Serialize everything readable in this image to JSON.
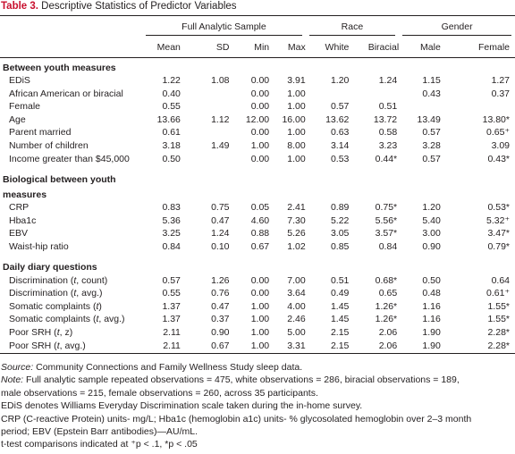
{
  "caption": {
    "label": "Table 3.",
    "text": "Descriptive Statistics of Predictor Variables"
  },
  "groups": {
    "full": "Full Analytic Sample",
    "race": "Race",
    "gender": "Gender"
  },
  "columns": [
    "Mean",
    "SD",
    "Min",
    "Max",
    "White",
    "Biracial",
    "Male",
    "Female"
  ],
  "sections": [
    {
      "title": "Between youth measures",
      "rows": [
        {
          "label": "EDiS",
          "vals": [
            "1.22",
            "1.08",
            "0.00",
            "3.91",
            "1.20",
            "1.24",
            "1.15",
            "1.27"
          ]
        },
        {
          "label": "African American or biracial",
          "vals": [
            "0.40",
            "",
            "0.00",
            "1.00",
            "",
            "",
            "0.43",
            "0.37"
          ]
        },
        {
          "label": "Female",
          "vals": [
            "0.55",
            "",
            "0.00",
            "1.00",
            "0.57",
            "0.51",
            "",
            ""
          ]
        },
        {
          "label": "Age",
          "vals": [
            "13.66",
            "1.12",
            "12.00",
            "16.00",
            "13.62",
            "13.72",
            "13.49",
            "13.80*"
          ]
        },
        {
          "label": "Parent married",
          "vals": [
            "0.61",
            "",
            "0.00",
            "1.00",
            "0.63",
            "0.58",
            "0.57",
            "0.65⁺"
          ]
        },
        {
          "label": "Number of children",
          "vals": [
            "3.18",
            "1.49",
            "1.00",
            "8.00",
            "3.14",
            "3.23",
            "3.28",
            "3.09"
          ]
        },
        {
          "label": "Income greater than $45,000",
          "vals": [
            "0.50",
            "",
            "0.00",
            "1.00",
            "0.53",
            "0.44*",
            "0.57",
            "0.43*"
          ]
        }
      ]
    },
    {
      "title": "Biological between youth",
      "title2": "measures",
      "rows": [
        {
          "label": "CRP",
          "vals": [
            "0.83",
            "0.75",
            "0.05",
            "2.41",
            "0.89",
            "0.75*",
            "1.20",
            "0.53*"
          ]
        },
        {
          "label": "Hba1c",
          "vals": [
            "5.36",
            "0.47",
            "4.60",
            "7.30",
            "5.22",
            "5.56*",
            "5.40",
            "5.32⁺"
          ]
        },
        {
          "label": "EBV",
          "vals": [
            "3.25",
            "1.24",
            "0.88",
            "5.26",
            "3.05",
            "3.57*",
            "3.00",
            "3.47*"
          ]
        },
        {
          "label": "Waist-hip ratio",
          "vals": [
            "0.84",
            "0.10",
            "0.67",
            "1.02",
            "0.85",
            "0.84",
            "0.90",
            "0.79*"
          ]
        }
      ]
    },
    {
      "title": "Daily diary questions",
      "rows": [
        {
          "label": "Discrimination (t, count)",
          "vals": [
            "0.57",
            "1.26",
            "0.00",
            "7.00",
            "0.51",
            "0.68*",
            "0.50",
            "0.64"
          ]
        },
        {
          "label": "Discrimination (t, avg.)",
          "vals": [
            "0.55",
            "0.76",
            "0.00",
            "3.64",
            "0.49",
            "0.65",
            "0.48",
            "0.61⁺"
          ]
        },
        {
          "label": "Somatic complaints (t)",
          "vals": [
            "1.37",
            "0.47",
            "1.00",
            "4.00",
            "1.45",
            "1.26*",
            "1.16",
            "1.55*"
          ]
        },
        {
          "label": "Somatic complaints (t, avg.)",
          "vals": [
            "1.37",
            "0.37",
            "1.00",
            "2.46",
            "1.45",
            "1.26*",
            "1.16",
            "1.55*"
          ]
        },
        {
          "label": "Poor SRH (t, z)",
          "vals": [
            "2.11",
            "0.90",
            "1.00",
            "5.00",
            "2.15",
            "2.06",
            "1.90",
            "2.28*"
          ]
        },
        {
          "label": "Poor SRH (t, avg.)",
          "vals": [
            "2.11",
            "0.67",
            "1.00",
            "3.31",
            "2.15",
            "2.06",
            "1.90",
            "2.28*"
          ]
        }
      ]
    }
  ],
  "notes": {
    "source_label": "Source:",
    "source_text": "  Community Connections and Family Wellness Study sleep data.",
    "note_label": "Note:",
    "note_line1": " Full analytic sample repeated observations =  475, white observations = 286, biracial observations = 189,",
    "note_line2": "male observations = 215, female observations = 260, across 35 participants.",
    "edis": "EDiS denotes Williams Everyday Discrimination scale taken during the in-home survey.",
    "units1": "CRP (C-reactive Protein) units- mg/L; Hba1c (hemoglobin a1c) units- % glycosolated hemoglobin over 2–3 month",
    "units2": "period; EBV (Epstein Barr antibodies)—AU/mL.",
    "ttest": "t-test comparisons indicated at ⁺p < .1, *p < .05"
  }
}
